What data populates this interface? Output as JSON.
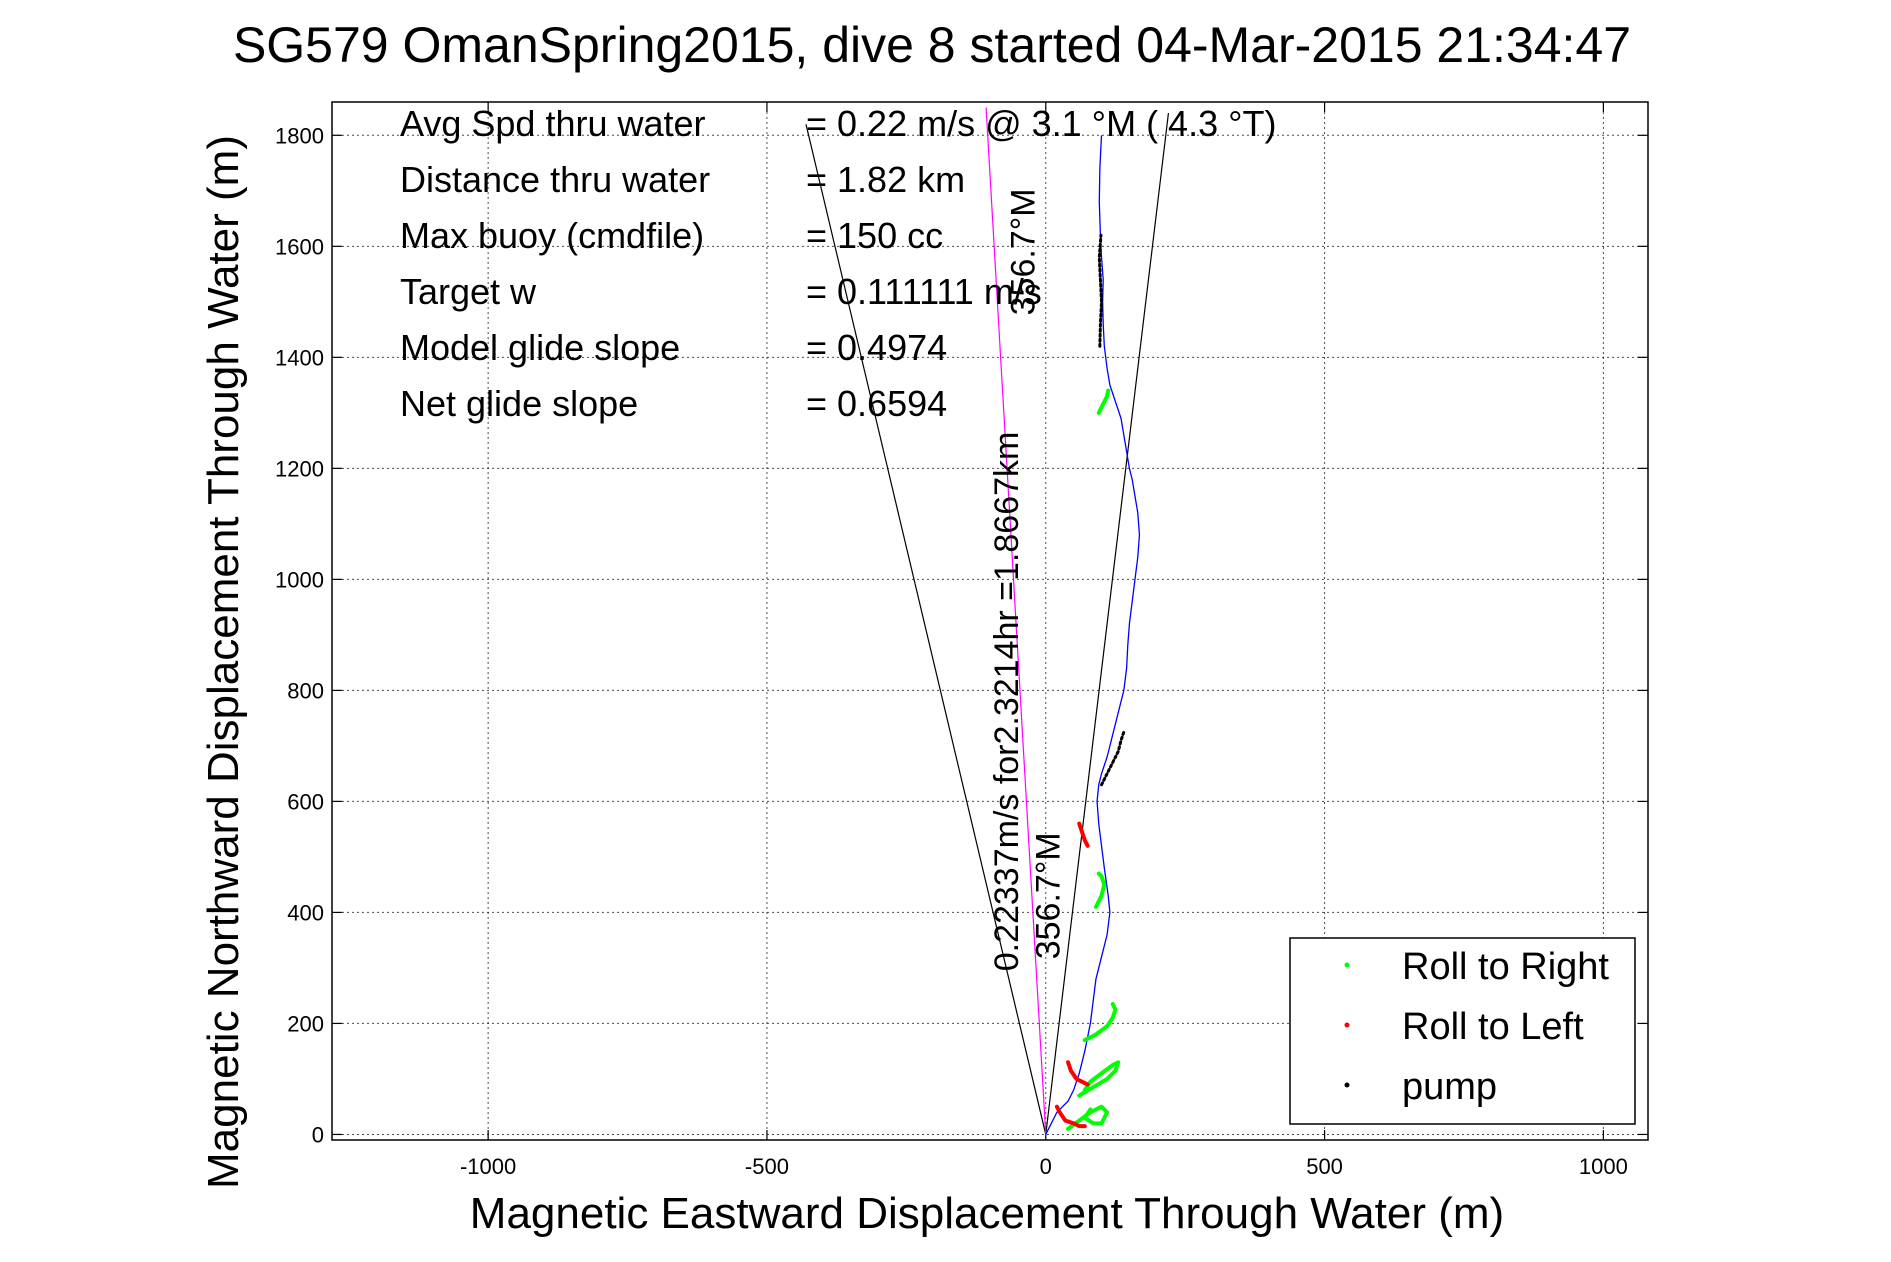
{
  "chart_data": {
    "type": "line",
    "title": "SG579 OmanSpring2015, dive 8 started 04-Mar-2015 21:34:47",
    "xlabel": "Magnetic Eastward Displacement Through Water (m)",
    "ylabel": "Magnetic Northward Displacement Through Water (m)",
    "xlim": [
      -1280,
      1080
    ],
    "ylim": [
      -10,
      1860
    ],
    "xticks": [
      -1000,
      -500,
      0,
      500,
      1000
    ],
    "yticks": [
      0,
      200,
      400,
      600,
      800,
      1000,
      1200,
      1400,
      1600,
      1800
    ],
    "grid": true,
    "legend_position": "bottom-right",
    "info": [
      {
        "label": "Avg Spd thru water",
        "value": "=  0.22 m/s @    3.1 °M (  4.3 °T)"
      },
      {
        "label": "Distance thru water",
        "value": "=  1.82 km"
      },
      {
        "label": "Max buoy (cmdfile)",
        "value": "= 150 cc"
      },
      {
        "label": "Target w",
        "value": "= 0.111111 m/s"
      },
      {
        "label": "Model glide slope",
        "value": "= 0.4974"
      },
      {
        "label": "Net glide slope",
        "value": "= 0.6594"
      }
    ],
    "annotations": [
      {
        "text": "0.22337m/s for2.3214hr =1.8667km",
        "x": -50,
        "y": 780,
        "color": "#000000"
      },
      {
        "text": "356.7°M",
        "x": 25,
        "y": 430,
        "color": "#000000"
      },
      {
        "text": "356.7°M",
        "x": -20,
        "y": 1590,
        "color": "#000000"
      }
    ],
    "reference_lines": [
      {
        "name": "left-bound",
        "x": [
          0,
          -430
        ],
        "y": [
          0,
          1820
        ],
        "color": "#000000"
      },
      {
        "name": "right-bound",
        "x": [
          0,
          220
        ],
        "y": [
          0,
          1840
        ],
        "color": "#000000"
      },
      {
        "name": "heading",
        "x": [
          0,
          -107
        ],
        "y": [
          0,
          1850
        ],
        "color": "#ff00ff"
      }
    ],
    "series": [
      {
        "role": "track",
        "color": "#0000ff",
        "x": [
          0,
          10,
          20,
          30,
          40,
          50,
          60,
          70,
          80,
          85,
          90,
          95,
          100,
          105,
          110,
          115,
          112,
          105,
          100,
          95,
          92,
          95,
          100,
          110,
          120,
          130,
          140,
          145,
          147,
          150,
          155,
          160,
          165,
          168,
          165,
          160,
          155,
          150,
          145,
          140,
          135,
          125,
          115,
          110,
          105,
          103,
          102,
          103,
          100,
          98,
          96,
          97,
          100
        ],
        "y": [
          0,
          20,
          40,
          50,
          60,
          80,
          110,
          150,
          200,
          240,
          280,
          300,
          320,
          340,
          360,
          400,
          430,
          480,
          520,
          560,
          600,
          630,
          650,
          680,
          720,
          760,
          800,
          840,
          880,
          920,
          960,
          1000,
          1040,
          1080,
          1120,
          1150,
          1180,
          1200,
          1230,
          1260,
          1290,
          1320,
          1350,
          1380,
          1420,
          1460,
          1500,
          1540,
          1580,
          1620,
          1680,
          1740,
          1800
        ]
      }
    ],
    "segments": [
      {
        "type": "Roll to Right",
        "color": "#00ff00",
        "x": [
          40,
          60,
          80,
          100,
          110,
          100,
          85,
          70,
          80
        ],
        "y": [
          10,
          25,
          40,
          50,
          40,
          20,
          20,
          30,
          45
        ]
      },
      {
        "type": "Roll to Right",
        "color": "#00ff00",
        "x": [
          60,
          85,
          110,
          125,
          130,
          120,
          100,
          80,
          70
        ],
        "y": [
          70,
          85,
          100,
          115,
          130,
          125,
          110,
          95,
          80
        ]
      },
      {
        "type": "Roll to Right",
        "color": "#00ff00",
        "x": [
          70,
          90,
          110,
          120,
          125,
          120
        ],
        "y": [
          170,
          180,
          195,
          210,
          225,
          235
        ]
      },
      {
        "type": "Roll to Right",
        "color": "#00ff00",
        "x": [
          90,
          100,
          105,
          100,
          95
        ],
        "y": [
          410,
          430,
          450,
          465,
          470
        ]
      },
      {
        "type": "Roll to Right",
        "color": "#00ff00",
        "x": [
          95,
          100,
          105,
          110,
          112
        ],
        "y": [
          1300,
          1310,
          1320,
          1330,
          1340
        ]
      },
      {
        "type": "Roll to Left",
        "color": "#ff0000",
        "x": [
          20,
          25,
          35,
          50,
          60,
          70
        ],
        "y": [
          50,
          40,
          25,
          20,
          15,
          15
        ]
      },
      {
        "type": "Roll to Left",
        "color": "#ff0000",
        "x": [
          40,
          45,
          55,
          65,
          75
        ],
        "y": [
          130,
          115,
          100,
          95,
          90
        ]
      },
      {
        "type": "Roll to Left",
        "color": "#ff0000",
        "x": [
          60,
          65,
          70,
          75
        ],
        "y": [
          560,
          545,
          530,
          520
        ]
      },
      {
        "type": "pump",
        "color": "#000000",
        "x": [
          100,
          110,
          120,
          130,
          135,
          140
        ],
        "y": [
          630,
          650,
          670,
          690,
          710,
          725
        ]
      },
      {
        "type": "pump",
        "color": "#000000",
        "x": [
          97,
          98,
          100,
          98,
          96,
          99
        ],
        "y": [
          1420,
          1460,
          1500,
          1540,
          1580,
          1620
        ]
      }
    ],
    "legend": [
      {
        "label": "Roll to Right",
        "color": "#00ff00"
      },
      {
        "label": "Roll to Left",
        "color": "#ff0000"
      },
      {
        "label": "pump",
        "color": "#000000"
      }
    ]
  }
}
